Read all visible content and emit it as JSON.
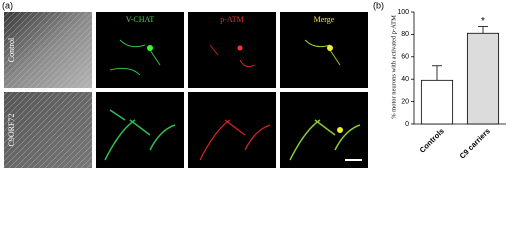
{
  "figure": {
    "panel_a_label": "(a)",
    "panel_b_label": "(b)",
    "row_labels": [
      "Control",
      "C9ORF72"
    ],
    "column_headers": [
      "V-CHAT",
      "p-ATM",
      "Merge"
    ]
  },
  "chart_data": {
    "type": "bar",
    "y_label": "% motor neurons with activated p-ATM",
    "categories": [
      "Controls",
      "C9 carriers"
    ],
    "values": [
      39,
      81
    ],
    "errors": [
      13,
      6
    ],
    "colors": [
      "#ffffff",
      "#dcdcdc"
    ],
    "annotation": "*",
    "ylim": [
      0,
      100
    ],
    "yticks": [
      0,
      20,
      40,
      60,
      80,
      100
    ]
  }
}
